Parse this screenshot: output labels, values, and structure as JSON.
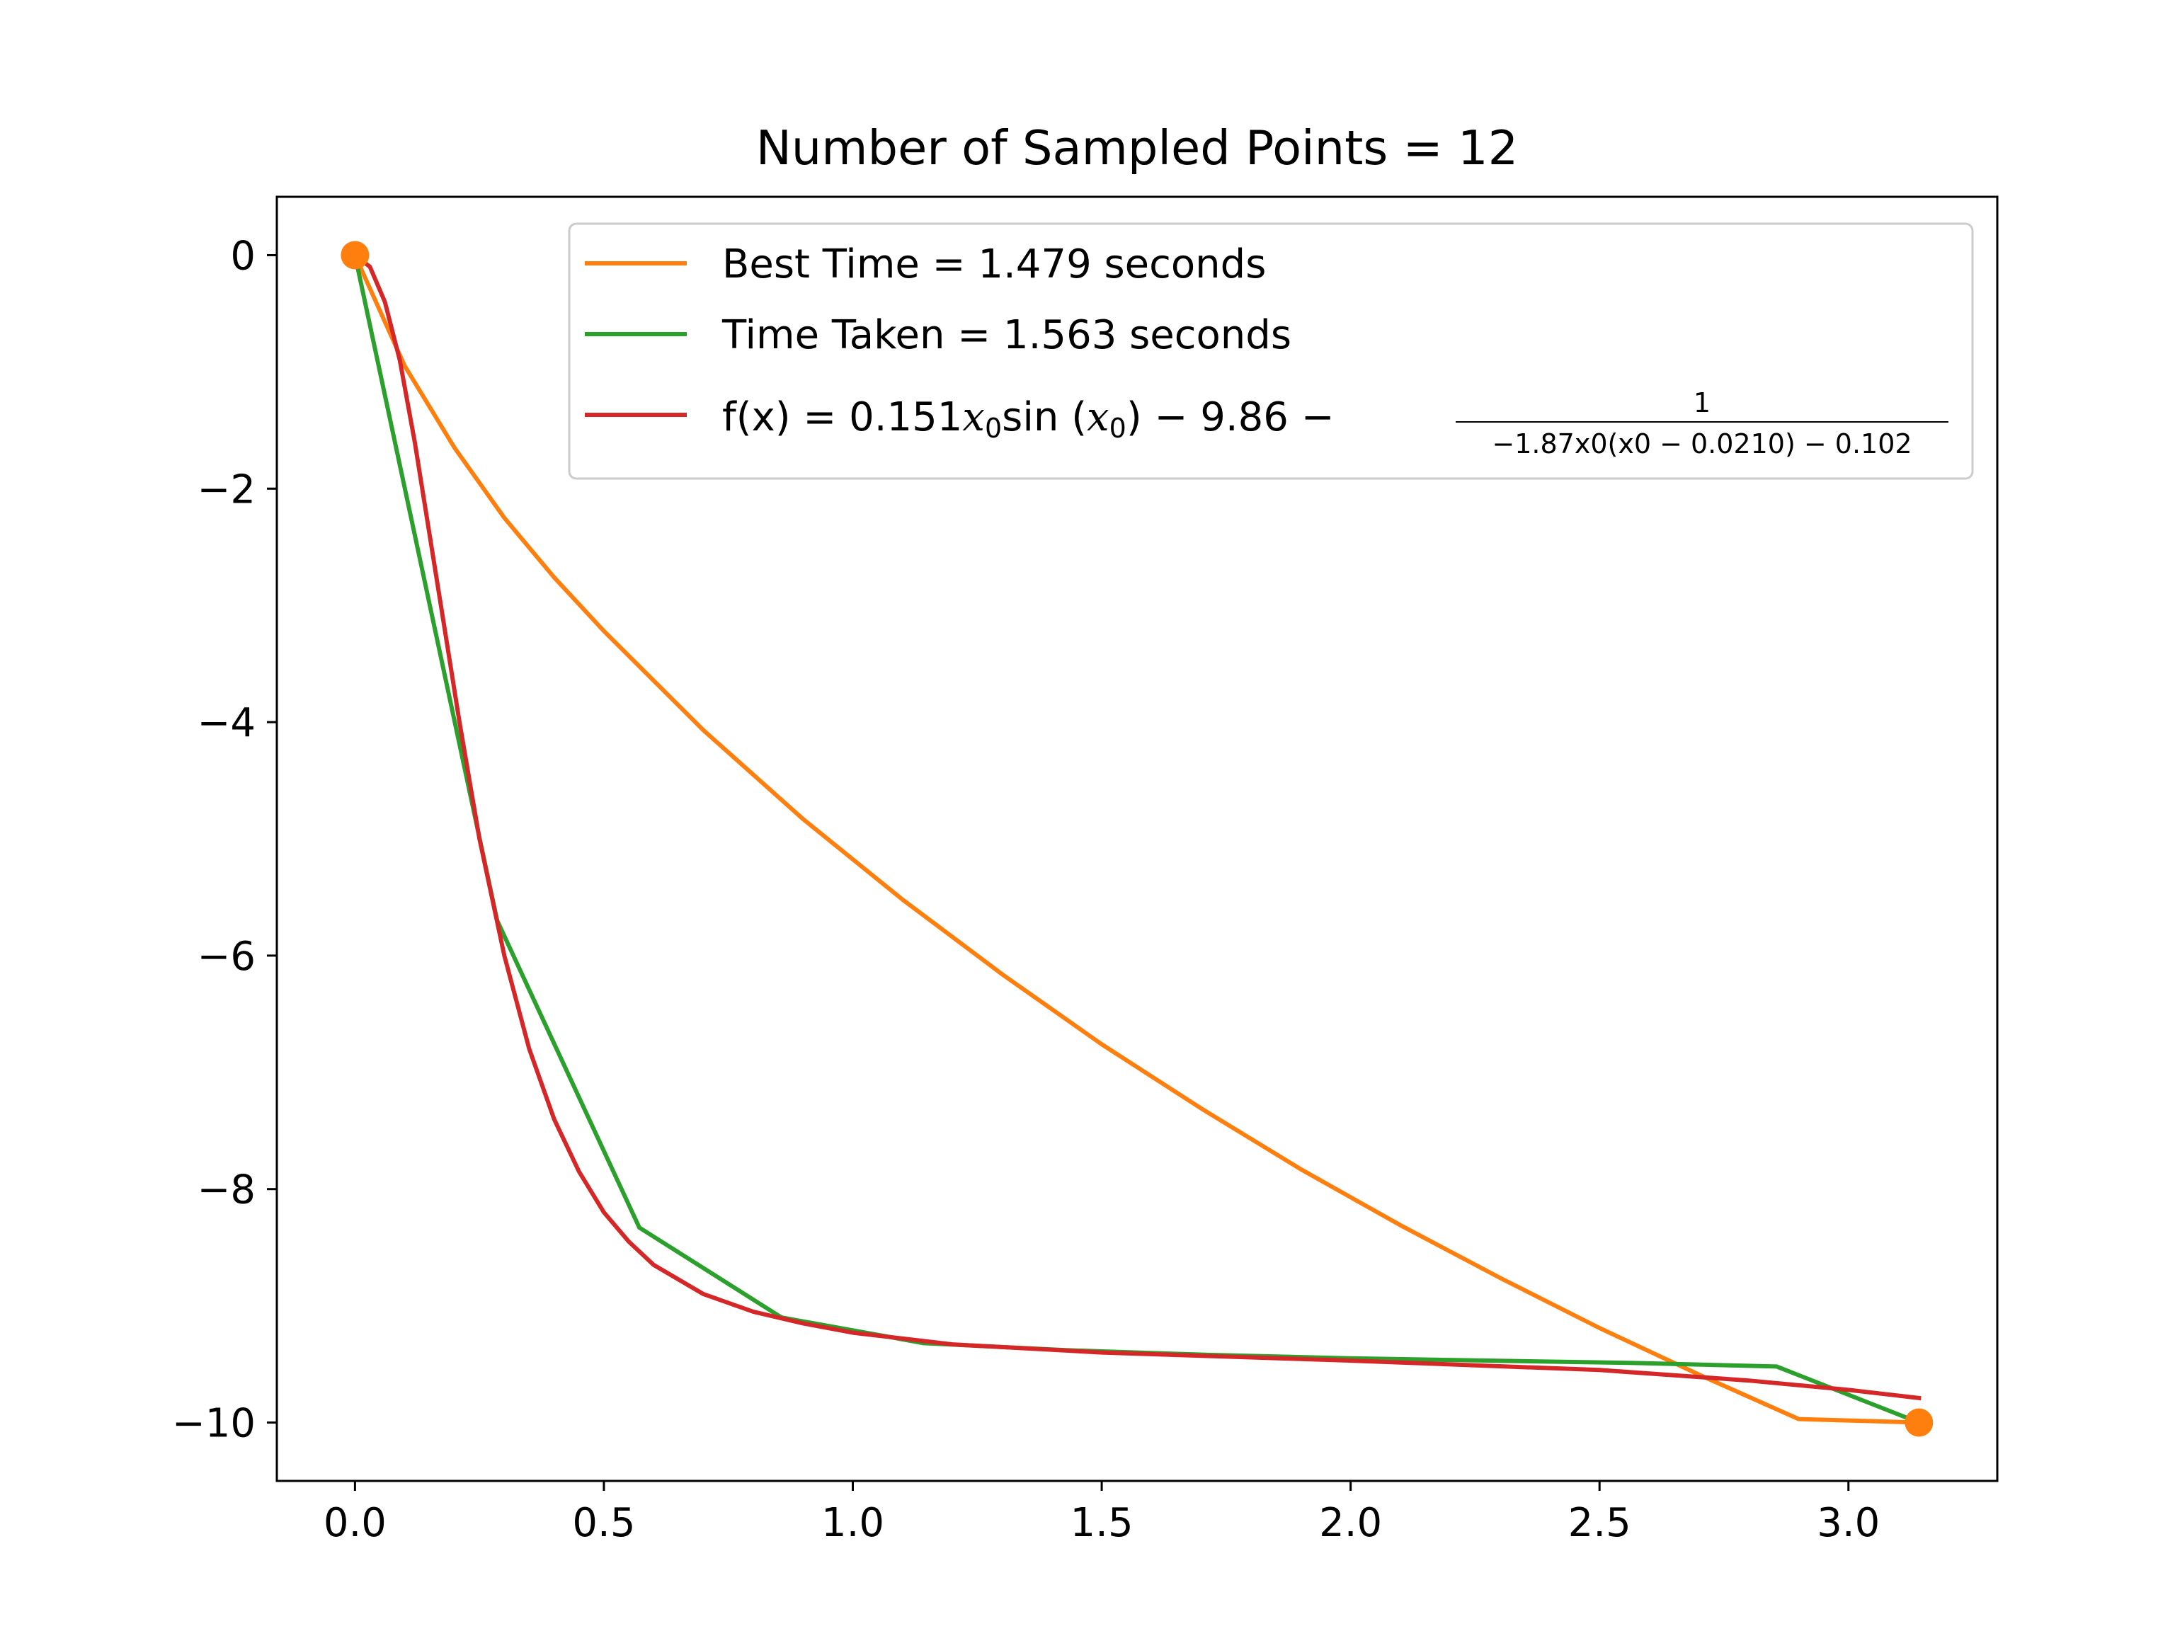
{
  "chart_data": {
    "type": "line",
    "title": "Number of Sampled Points = 12",
    "xlabel": "",
    "ylabel": "",
    "xlim": [
      -0.157,
      3.299
    ],
    "ylim": [
      -10.5,
      0.5
    ],
    "x_ticks": [
      0.0,
      0.5,
      1.0,
      1.5,
      2.0,
      2.5,
      3.0
    ],
    "x_tick_labels": [
      "0.0",
      "0.5",
      "1.0",
      "1.5",
      "2.0",
      "2.5",
      "3.0"
    ],
    "y_ticks": [
      0,
      -2,
      -4,
      -6,
      -8,
      -10
    ],
    "y_tick_labels": [
      "0",
      "−2",
      "−4",
      "−6",
      "−8",
      "−10"
    ],
    "grid": false,
    "legend_position": "top-right",
    "series": [
      {
        "name": "Best Time = 1.479 seconds",
        "color": "#ff7f0e",
        "x": [
          0.0,
          0.1,
          0.2,
          0.3,
          0.4,
          0.5,
          0.7,
          0.9,
          1.1,
          1.3,
          1.5,
          1.7,
          1.9,
          2.1,
          2.3,
          2.5,
          2.7,
          2.9,
          3.1416
        ],
        "y": [
          0.0,
          -0.95,
          -1.65,
          -2.25,
          -2.76,
          -3.22,
          -4.07,
          -4.83,
          -5.52,
          -6.16,
          -6.76,
          -7.31,
          -7.83,
          -8.31,
          -8.76,
          -9.19,
          -9.59,
          -9.97,
          -10.0
        ]
      },
      {
        "name": "Time Taken = 1.563 seconds",
        "color": "#2ca02c",
        "x": [
          0.0,
          0.2856,
          0.5712,
          0.8568,
          1.1424,
          1.428,
          1.7136,
          1.9992,
          2.2848,
          2.5704,
          2.856,
          3.1416
        ],
        "y": [
          0.0,
          -5.7,
          -8.33,
          -9.1,
          -9.32,
          -9.38,
          -9.42,
          -9.45,
          -9.47,
          -9.49,
          -9.52,
          -10.0
        ]
      },
      {
        "name_parts": {
          "prefix": "f(x) = 0.151",
          "var1": "x",
          "sub1": "0",
          "mid1": "sin (",
          "var2": "x",
          "sub2": "0",
          "mid2": ") − 9.86 −",
          "numerator": "1",
          "denominator": "−1.87x0(x0 − 0.0210) − 0.102"
        },
        "color": "#d62728",
        "x": [
          0.0,
          0.03,
          0.06,
          0.09,
          0.12,
          0.15,
          0.18,
          0.21,
          0.25,
          0.3,
          0.35,
          0.4,
          0.45,
          0.5,
          0.55,
          0.6,
          0.7,
          0.8,
          0.9,
          1.0,
          1.2,
          1.5,
          2.0,
          2.5,
          2.8,
          3.0,
          3.1416
        ],
        "y": [
          0.0,
          -0.1,
          -0.4,
          -0.9,
          -1.6,
          -2.4,
          -3.2,
          -4.0,
          -5.0,
          -6.0,
          -6.8,
          -7.4,
          -7.85,
          -8.2,
          -8.45,
          -8.65,
          -8.9,
          -9.05,
          -9.15,
          -9.23,
          -9.33,
          -9.4,
          -9.47,
          -9.55,
          -9.64,
          -9.72,
          -9.79
        ]
      }
    ],
    "endpoints": {
      "color": "#ff7f0e",
      "points": [
        {
          "x": 0.0,
          "y": 0.0
        },
        {
          "x": 3.1416,
          "y": -10.0
        }
      ]
    }
  }
}
